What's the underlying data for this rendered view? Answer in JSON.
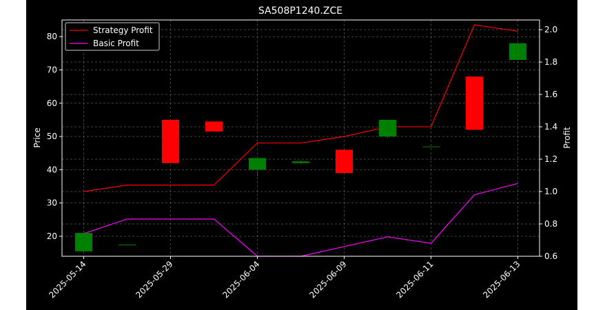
{
  "chart_data": {
    "type": "candlestick",
    "title": "SA508P1240.ZCE",
    "xlabel": "",
    "ylabel": "Price",
    "y2label": "Profit",
    "x_tick_labels": [
      "2025-05-14",
      "2025-05-29",
      "2025-06-04",
      "2025-06-09",
      "2025-06-11",
      "2025-06-13"
    ],
    "ylim": [
      14,
      85
    ],
    "y_ticks": [
      20,
      30,
      40,
      50,
      60,
      70,
      80
    ],
    "y2lim": [
      0.6,
      2.06
    ],
    "y2_ticks": [
      0.6,
      0.8,
      1.0,
      1.2,
      1.4,
      1.6,
      1.8,
      2.0
    ],
    "grid": true,
    "legend_position": "top-left",
    "colors": {
      "background": "#000000",
      "axis": "#ffffff",
      "grid": "#6e6e6e",
      "up": "#008000",
      "down": "#ff0000",
      "strategy": "#ff0000",
      "basic": "#ff00ff"
    },
    "candles": [
      {
        "open": 15.5,
        "high": 21.0,
        "low": 15.5,
        "close": 21.0
      },
      {
        "open": 17.5,
        "high": 17.5,
        "low": 17.5,
        "close": 17.5
      },
      {
        "open": 55.0,
        "high": 55.0,
        "low": 42.0,
        "close": 42.0
      },
      {
        "open": 54.5,
        "high": 54.5,
        "low": 51.5,
        "close": 51.5
      },
      {
        "open": 40.0,
        "high": 43.5,
        "low": 38.0,
        "close": 43.5
      },
      {
        "open": 42.0,
        "high": 42.8,
        "low": 41.8,
        "close": 42.5
      },
      {
        "open": 46.0,
        "high": 46.0,
        "low": 39.0,
        "close": 39.0
      },
      {
        "open": 50.0,
        "high": 55.0,
        "low": 49.5,
        "close": 55.0
      },
      {
        "open": 47.0,
        "high": 47.0,
        "low": 47.0,
        "close": 47.0
      },
      {
        "open": 68.0,
        "high": 68.0,
        "low": 52.0,
        "close": 52.0
      },
      {
        "open": 73.0,
        "high": 78.0,
        "low": 73.0,
        "close": 78.0
      }
    ],
    "series": [
      {
        "name": "Strategy Profit",
        "values": [
          1.0,
          1.04,
          1.04,
          1.04,
          1.3,
          1.3,
          1.34,
          1.4,
          1.4,
          2.03,
          1.99
        ]
      },
      {
        "name": "Basic Profit",
        "values": [
          0.74,
          0.83,
          0.83,
          0.83,
          0.6,
          0.6,
          0.66,
          0.72,
          0.68,
          0.98,
          1.05
        ]
      }
    ]
  }
}
